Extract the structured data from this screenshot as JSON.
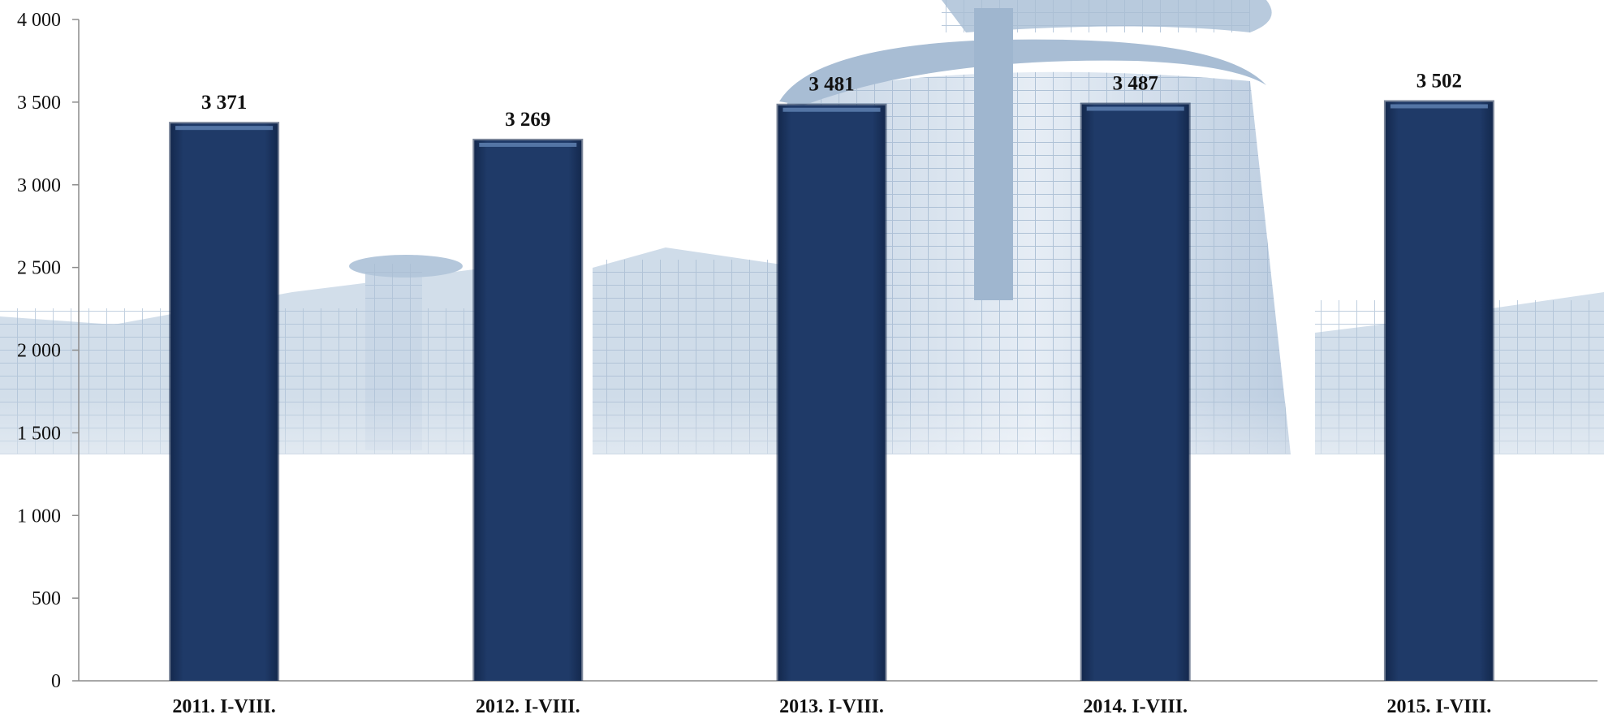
{
  "chart_data": {
    "type": "bar",
    "title": "",
    "xlabel": "",
    "ylabel": "",
    "categories": [
      "2011. I-VIII.",
      "2012. I-VIII.",
      "2013. I-VIII.",
      "2014. I-VIII.",
      "2015. I-VIII."
    ],
    "values": [
      3371,
      3269,
      3481,
      3487,
      3502
    ],
    "data_labels": [
      "3 371",
      "3 269",
      "3 481",
      "3 487",
      "3 502"
    ],
    "ylim": [
      0,
      4000
    ],
    "yticks": [
      0,
      500,
      1000,
      1500,
      2000,
      2500,
      3000,
      3500,
      4000
    ],
    "ytick_labels": [
      "0",
      "500",
      "1 000",
      "1 500",
      "2 000",
      "2 500",
      "3 000",
      "3 500",
      "4 000"
    ],
    "grid": false,
    "legend": "none",
    "background": "faded photo of a curved glass office building",
    "colors": {
      "bar": "#1f3a68",
      "bar_edge": "#0f2347",
      "bar_highlight": "#5e80b0",
      "axis": "#8c8c8c",
      "text": "#111111",
      "sky": "#ffffff",
      "building_light": "#d8e3ef",
      "building_mid": "#b7c9dc",
      "building_dark": "#8fa9c6"
    }
  }
}
